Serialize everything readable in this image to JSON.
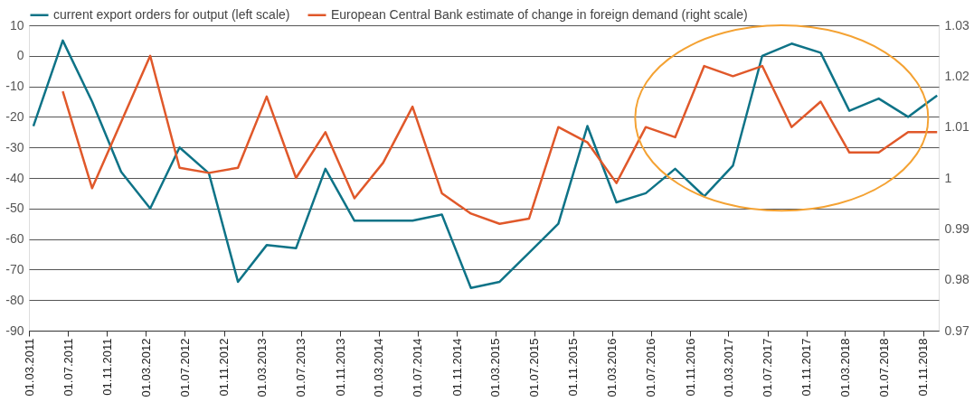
{
  "chart_data": {
    "type": "line",
    "x": [
      "2011-03-15",
      "2011-06-15",
      "2011-09-15",
      "2011-12-15",
      "2012-03-15",
      "2012-06-15",
      "2012-09-15",
      "2012-12-15",
      "2013-03-15",
      "2013-06-15",
      "2013-09-15",
      "2013-12-15",
      "2014-03-15",
      "2014-06-15",
      "2014-09-15",
      "2014-12-15",
      "2015-03-15",
      "2015-06-15",
      "2015-09-15",
      "2015-12-15",
      "2016-03-15",
      "2016-06-15",
      "2016-09-15",
      "2016-12-15",
      "2017-03-15",
      "2017-06-15",
      "2017-09-15",
      "2017-12-15",
      "2018-03-15",
      "2018-06-15",
      "2018-09-15",
      "2018-12-15"
    ],
    "series": [
      {
        "name": "current export orders for output (left scale)",
        "color": "#0e7387",
        "values": [
          -23,
          5,
          -15,
          -38,
          -50,
          -30,
          -38.5,
          -74,
          -62,
          -63,
          -37,
          -54,
          -54,
          -54,
          -52,
          -76,
          -74,
          -64.5,
          -55,
          -23,
          -48,
          -45,
          -37,
          -46,
          -36,
          0,
          4,
          1,
          -18,
          -14,
          -20,
          -13
        ]
      },
      {
        "name": "European Central Bank estimate of change in foreign demand (right scale)",
        "color": "#e0582a",
        "axis": "y2",
        "values": [
          null,
          1.017,
          0.998,
          1.011,
          1.024,
          1.002,
          1.001,
          1.002,
          1.016,
          1.0,
          1.009,
          0.996,
          1.003,
          1.014,
          0.997,
          0.993,
          0.991,
          0.992,
          1.01,
          1.007,
          0.999,
          1.01,
          1.008,
          1.022,
          1.02,
          1.022,
          1.01,
          1.015,
          1.005,
          1.005,
          1.009,
          1.009
        ]
      }
    ],
    "xlim": [
      "2011-03-01",
      "2018-12-20"
    ],
    "xticks": [
      {
        "value": "2011-03-01",
        "label": "01.03.2011"
      },
      {
        "value": "2011-07-01",
        "label": "01.07.2011"
      },
      {
        "value": "2011-11-01",
        "label": "01.11.2011"
      },
      {
        "value": "2012-03-01",
        "label": "01.03.2012"
      },
      {
        "value": "2012-07-01",
        "label": "01.07.2012"
      },
      {
        "value": "2012-11-01",
        "label": "01.11.2012"
      },
      {
        "value": "2013-03-01",
        "label": "01.03.2013"
      },
      {
        "value": "2013-07-01",
        "label": "01.07.2013"
      },
      {
        "value": "2013-11-01",
        "label": "01.11.2013"
      },
      {
        "value": "2014-03-01",
        "label": "01.03.2014"
      },
      {
        "value": "2014-07-01",
        "label": "01.07.2014"
      },
      {
        "value": "2014-11-01",
        "label": "01.11.2014"
      },
      {
        "value": "2015-03-01",
        "label": "01.03.2015"
      },
      {
        "value": "2015-07-01",
        "label": "01.07.2015"
      },
      {
        "value": "2015-11-01",
        "label": "01.11.2015"
      },
      {
        "value": "2016-03-01",
        "label": "01.03.2016"
      },
      {
        "value": "2016-07-01",
        "label": "01.07.2016"
      },
      {
        "value": "2016-11-01",
        "label": "01.11.2016"
      },
      {
        "value": "2017-03-01",
        "label": "01.03.2017"
      },
      {
        "value": "2017-07-01",
        "label": "01.07.2017"
      },
      {
        "value": "2017-11-01",
        "label": "01.11.2017"
      },
      {
        "value": "2018-03-01",
        "label": "01.03.2018"
      },
      {
        "value": "2018-07-01",
        "label": "01.07.2018"
      },
      {
        "value": "2018-11-01",
        "label": "01.11.2018"
      }
    ],
    "ylim": [
      -90,
      10
    ],
    "yticks": [
      -90,
      -80,
      -70,
      -60,
      -50,
      -40,
      -30,
      -20,
      -10,
      0,
      10
    ],
    "y2lim": [
      0.97,
      1.03
    ],
    "y2ticks": [
      0.97,
      0.98,
      0.99,
      1,
      1.01,
      1.02,
      1.03
    ],
    "grid": "y",
    "legend": "top",
    "line_style": "solid",
    "marker": "none"
  }
}
